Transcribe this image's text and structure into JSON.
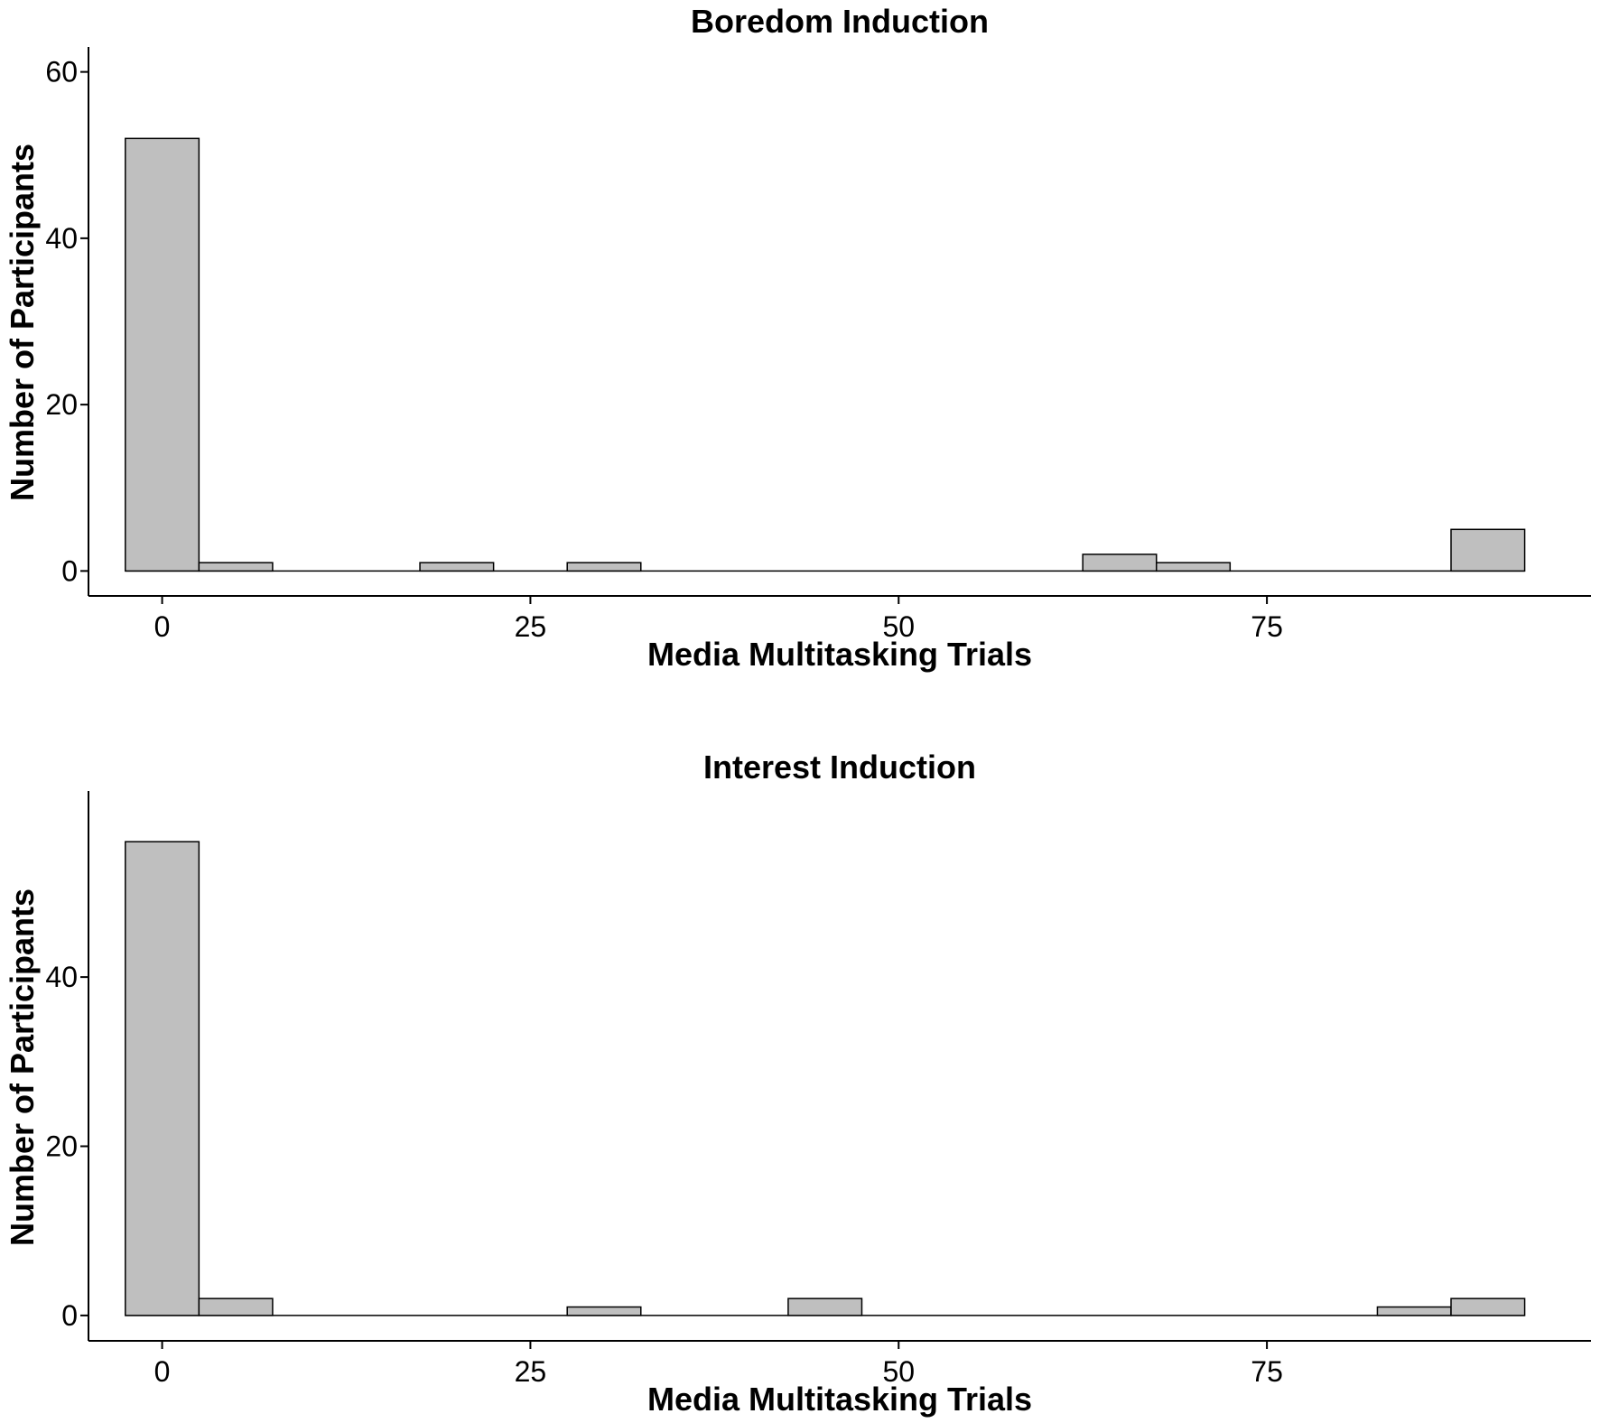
{
  "chart_data": [
    {
      "type": "bar",
      "title": "Boredom Induction",
      "xlabel": "Media Multitasking Trials",
      "ylabel": "Number of Participants",
      "x_ticks": [
        0,
        25,
        50,
        75
      ],
      "y_ticks": [
        0,
        20,
        40,
        60
      ],
      "xlim": [
        -5,
        97
      ],
      "ylim": [
        -3,
        63
      ],
      "bin_width": 5,
      "bins": [
        {
          "center": 0,
          "count": 52
        },
        {
          "center": 5,
          "count": 1
        },
        {
          "center": 10,
          "count": 0
        },
        {
          "center": 15,
          "count": 0
        },
        {
          "center": 20,
          "count": 1
        },
        {
          "center": 25,
          "count": 0
        },
        {
          "center": 30,
          "count": 1
        },
        {
          "center": 35,
          "count": 0
        },
        {
          "center": 40,
          "count": 0
        },
        {
          "center": 45,
          "count": 0
        },
        {
          "center": 50,
          "count": 0
        },
        {
          "center": 55,
          "count": 0
        },
        {
          "center": 60,
          "count": 0
        },
        {
          "center": 65,
          "count": 2
        },
        {
          "center": 70,
          "count": 1
        },
        {
          "center": 75,
          "count": 0
        },
        {
          "center": 80,
          "count": 0
        },
        {
          "center": 85,
          "count": 0
        },
        {
          "center": 90,
          "count": 5
        }
      ],
      "bar_color": "#bfbfbf",
      "grid": false
    },
    {
      "type": "bar",
      "title": "Interest Induction",
      "xlabel": "Media Multitasking Trials",
      "ylabel": "Number of Participants",
      "x_ticks": [
        0,
        25,
        50,
        75
      ],
      "y_ticks": [
        0,
        20,
        40
      ],
      "xlim": [
        -5,
        97
      ],
      "ylim": [
        -3,
        62
      ],
      "bin_width": 5,
      "bins": [
        {
          "center": 0,
          "count": 56
        },
        {
          "center": 5,
          "count": 2
        },
        {
          "center": 10,
          "count": 0
        },
        {
          "center": 15,
          "count": 0
        },
        {
          "center": 20,
          "count": 0
        },
        {
          "center": 25,
          "count": 0
        },
        {
          "center": 30,
          "count": 1
        },
        {
          "center": 35,
          "count": 0
        },
        {
          "center": 40,
          "count": 0
        },
        {
          "center": 45,
          "count": 2
        },
        {
          "center": 50,
          "count": 0
        },
        {
          "center": 55,
          "count": 0
        },
        {
          "center": 60,
          "count": 0
        },
        {
          "center": 65,
          "count": 0
        },
        {
          "center": 70,
          "count": 0
        },
        {
          "center": 75,
          "count": 0
        },
        {
          "center": 80,
          "count": 0
        },
        {
          "center": 85,
          "count": 1
        },
        {
          "center": 90,
          "count": 2
        }
      ],
      "bar_color": "#bfbfbf",
      "grid": false
    }
  ]
}
